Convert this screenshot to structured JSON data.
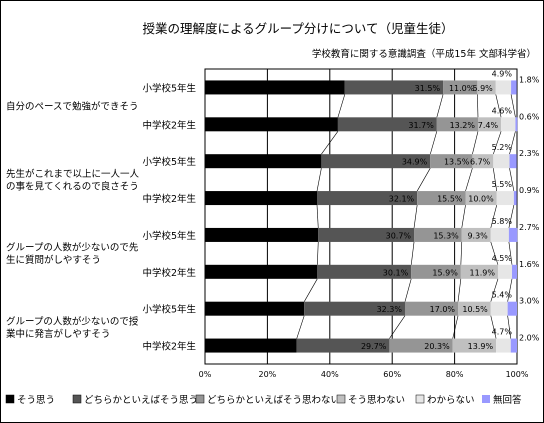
{
  "chart_data": {
    "type": "bar",
    "stacked": "percent",
    "orientation": "horizontal",
    "title": "授業の理解度によるグループ分けについて（児童生徒）",
    "subtitle": "学校教育に関する意識調査（平成15年 文部科学省）",
    "xlim": [
      0,
      100
    ],
    "x_ticks": [
      "0%",
      "20%",
      "40%",
      "60%",
      "80%",
      "100%"
    ],
    "grid": true,
    "legend_position": "bottom",
    "groups": [
      "自分のペースで勉強ができそう",
      "先生がこれまで以上に一人一人の事を見てくれるので良さそう",
      "グループの人数が少ないので先生に質問がしやすそう",
      "グループの人数が少ないので授業中に発言がしやすそう"
    ],
    "categories": [
      "小学校5年生",
      "中学校2年生",
      "小学校5年生",
      "中学校2年生",
      "小学校5年生",
      "中学校2年生",
      "小学校5年生",
      "中学校2年生"
    ],
    "series": [
      {
        "name": "そう思う",
        "color": "#000000",
        "values": [
          44.8,
          42.6,
          37.3,
          35.9,
          36.3,
          36.0,
          31.8,
          29.4
        ]
      },
      {
        "name": "どちらかといえばそう思う",
        "color": "#555555",
        "values": [
          31.5,
          31.7,
          34.9,
          32.1,
          30.7,
          30.1,
          32.3,
          29.7
        ]
      },
      {
        "name": "どちらかといえばそう思わない",
        "color": "#959595",
        "values": [
          11.0,
          13.2,
          13.5,
          15.5,
          15.3,
          15.9,
          17.0,
          20.3
        ]
      },
      {
        "name": "そう思わない",
        "color": "#c0c0c0",
        "values": [
          5.9,
          7.4,
          6.7,
          10.0,
          9.3,
          11.9,
          10.5,
          13.9
        ]
      },
      {
        "name": "わからない",
        "color": "#e6e6e6",
        "values": [
          4.9,
          4.6,
          5.2,
          5.5,
          5.8,
          4.5,
          5.4,
          4.7
        ]
      },
      {
        "name": "無回答",
        "color": "#9999ff",
        "values": [
          1.8,
          0.6,
          2.3,
          0.9,
          2.7,
          1.6,
          3.0,
          2.0
        ]
      }
    ],
    "value_labels": [
      [
        "44.8%",
        "31.5%",
        "11.0%",
        "5.9%",
        "4.9%",
        "1.8%"
      ],
      [
        "42.6%",
        "31.7%",
        "13.2%",
        "7.4%",
        "4.6%",
        "0.6%"
      ],
      [
        "37.3%",
        "34.9%",
        "13.5%",
        "6.7%",
        "5.2%",
        "2.3%"
      ],
      [
        "35.9%",
        "32.1%",
        "15.5%",
        "10.0%",
        "5.5%",
        "0.9%"
      ],
      [
        "36.3%",
        "30.7%",
        "15.3%",
        "9.3%",
        "5.8%",
        "2.7%"
      ],
      [
        "36.0%",
        "30.1%",
        "15.9%",
        "11.9%",
        "4.5%",
        "1.6%"
      ],
      [
        "31.8%",
        "32.3%",
        "17.0%",
        "10.5%",
        "5.4%",
        "3.0%"
      ],
      [
        "29.4%",
        "29.7%",
        "20.3%",
        "13.9%",
        "4.7%",
        "2.0%"
      ]
    ]
  }
}
